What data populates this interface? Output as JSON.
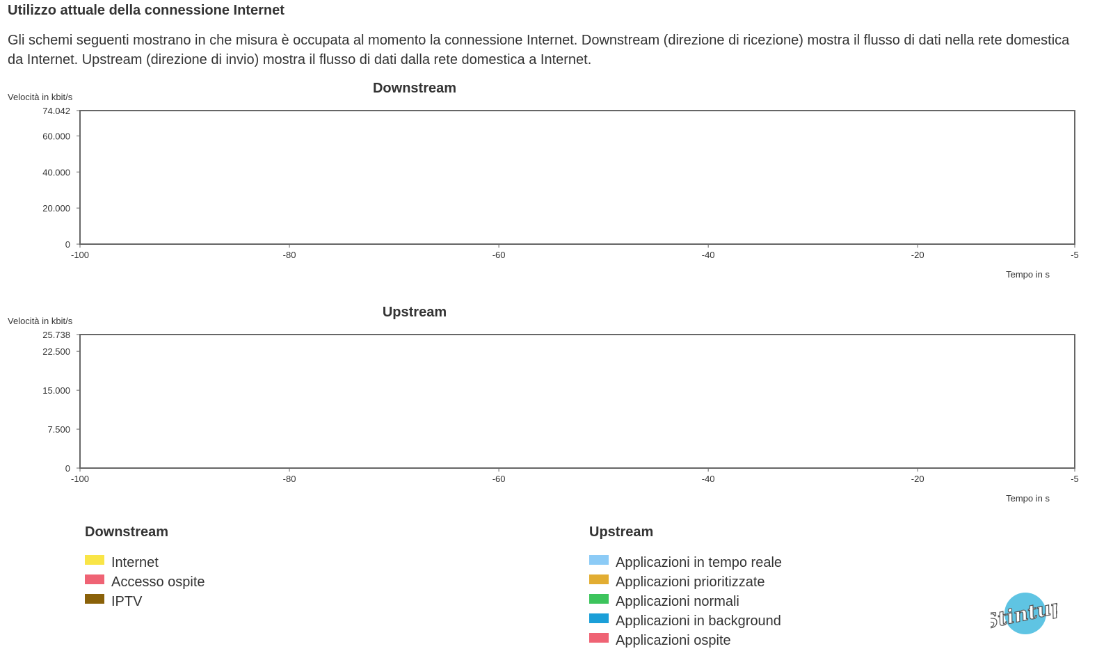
{
  "page": {
    "title": "Utilizzo attuale della connessione Internet",
    "description": "Gli schemi seguenti mostrano in che misura è occupata al momento la connessione Internet. Downstream (direzione di ricezione) mostra il flusso di dati nella rete domestica da Internet. Upstream (direzione di invio) mostra il flusso di dati dalla rete domestica a Internet."
  },
  "chart_data": [
    {
      "type": "area",
      "title": "Downstream",
      "ylabel": "Velocità in kbit/s",
      "xlabel": "Tempo in s",
      "xlim": [
        -100,
        -5
      ],
      "ylim": [
        0,
        74042
      ],
      "xticks": [
        -100,
        -80,
        -60,
        -40,
        -20,
        -5
      ],
      "xtick_labels": [
        "-100",
        "-80",
        "-60",
        "-40",
        "-20",
        "-5"
      ],
      "yticks": [
        0,
        20000,
        40000,
        60000,
        74042
      ],
      "ytick_labels": [
        "0",
        "20.000",
        "40.000",
        "60.000",
        "74.042"
      ],
      "grid": false,
      "series": []
    },
    {
      "type": "area",
      "title": "Upstream",
      "ylabel": "Velocità in kbit/s",
      "xlabel": "Tempo in s",
      "xlim": [
        -100,
        -5
      ],
      "ylim": [
        0,
        25738
      ],
      "xticks": [
        -100,
        -80,
        -60,
        -40,
        -20,
        -5
      ],
      "xtick_labels": [
        "-100",
        "-80",
        "-60",
        "-40",
        "-20",
        "-5"
      ],
      "yticks": [
        0,
        7500,
        15000,
        22500,
        25738
      ],
      "ytick_labels": [
        "0",
        "7.500",
        "15.000",
        "22.500",
        "25.738"
      ],
      "grid": false,
      "series": []
    }
  ],
  "legend": {
    "downstream": {
      "title": "Downstream",
      "items": [
        {
          "label": "Internet",
          "color": "#f9e547"
        },
        {
          "label": "Accesso ospite",
          "color": "#ef6374"
        },
        {
          "label": "IPTV",
          "color": "#8a6109"
        }
      ]
    },
    "upstream": {
      "title": "Upstream",
      "items": [
        {
          "label": "Applicazioni in tempo reale",
          "color": "#8ccbf6"
        },
        {
          "label": "Applicazioni prioritizzate",
          "color": "#e2ad32"
        },
        {
          "label": "Applicazioni normali",
          "color": "#3cc45c"
        },
        {
          "label": "Applicazioni in background",
          "color": "#1b9fd8"
        },
        {
          "label": "Applicazioni ospite",
          "color": "#ef6374"
        }
      ]
    }
  },
  "logo": {
    "text": "Stintup"
  }
}
